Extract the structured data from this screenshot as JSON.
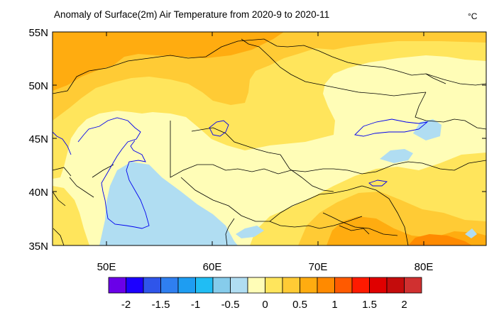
{
  "map": {
    "title": "Anomaly of Surface(2m) Air Temperature from 2020-9 to 2020-11",
    "unit": "°C",
    "lat_labels": [
      "55N",
      "50N",
      "45N",
      "40N",
      "35N"
    ],
    "lon_labels": [
      "50E",
      "60E",
      "70E",
      "80E"
    ],
    "extent": {
      "lon_min": 45,
      "lon_max": 85,
      "lat_min": 35,
      "lat_max": 55
    }
  },
  "colorbar": {
    "colors": [
      "#6a00e8",
      "#1c00ff",
      "#2f55ea",
      "#2f7ff0",
      "#1e9df2",
      "#20bdf4",
      "#86cceb",
      "#b0ddf2",
      "#fffdb7",
      "#ffe55c",
      "#ffcb35",
      "#ffac10",
      "#ff8a00",
      "#ff5a00",
      "#ff1a00",
      "#e00000",
      "#c40c0c",
      "#d03030"
    ],
    "labels": [
      "-2",
      "-1.5",
      "-1",
      "-0.5",
      "0",
      "0.5",
      "1",
      "1.5",
      "2"
    ]
  }
}
